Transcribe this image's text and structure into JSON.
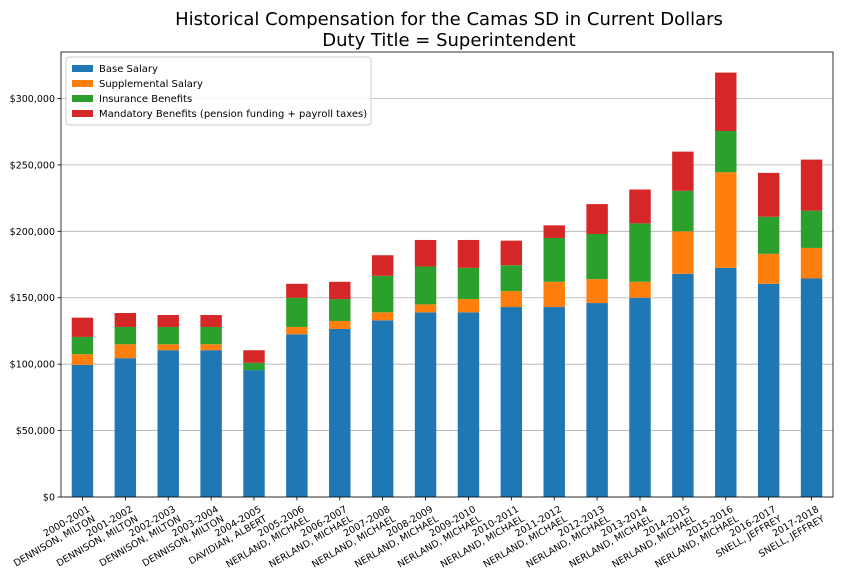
{
  "chart_data": {
    "type": "bar",
    "stacked": true,
    "title": "Historical Compensation for the Camas SD in Current Dollars",
    "subtitle": "Duty Title = Superintendent",
    "xlabel": "",
    "ylabel": "",
    "ylim": [
      0,
      335000
    ],
    "yticks": [
      0,
      50000,
      100000,
      150000,
      200000,
      250000,
      300000
    ],
    "ytick_labels": [
      "$0",
      "$50,000",
      "$100,000",
      "$150,000",
      "$200,000",
      "$250,000",
      "$300,000"
    ],
    "grid": "horizontal",
    "legend_position": "top-left",
    "categories": [
      [
        "2000-2001",
        "DENNISON, MILTON"
      ],
      [
        "2001-2002",
        "DENNISON, MILTON"
      ],
      [
        "2002-2003",
        "DENNISON, MILTON"
      ],
      [
        "2003-2004",
        "DENNISON, MILTON"
      ],
      [
        "2004-2005",
        "DAVIDIAN, ALBERT"
      ],
      [
        "2005-2006",
        "NERLAND, MICHAEL"
      ],
      [
        "2006-2007",
        "NERLAND, MICHAEL"
      ],
      [
        "2007-2008",
        "NERLAND, MICHAEL"
      ],
      [
        "2008-2009",
        "NERLAND, MICHAEL"
      ],
      [
        "2009-2010",
        "NERLAND, MICHAEL"
      ],
      [
        "2010-2011",
        "NERLAND, MICHAEL"
      ],
      [
        "2011-2012",
        "NERLAND, MICHAEL"
      ],
      [
        "2012-2013",
        "NERLAND, MICHAEL"
      ],
      [
        "2013-2014",
        "NERLAND, MICHAEL"
      ],
      [
        "2014-2015",
        "NERLAND, MICHAEL"
      ],
      [
        "2015-2016",
        "NERLAND, MICHAEL"
      ],
      [
        "2016-2017",
        "SNELL, JEFFREY"
      ],
      [
        "2017-2018",
        "SNELL, JEFFREY"
      ]
    ],
    "series": [
      {
        "name": "Base Salary",
        "color": "#1f77b4",
        "values": [
          99500,
          104500,
          110500,
          110500,
          95500,
          122500,
          126500,
          133000,
          139000,
          139000,
          143000,
          143000,
          146000,
          150000,
          168000,
          172500,
          160500,
          164500
        ]
      },
      {
        "name": "Supplemental Salary",
        "color": "#ff7f0e",
        "values": [
          8000,
          10500,
          4500,
          4500,
          0,
          5500,
          6000,
          6000,
          6000,
          10000,
          12000,
          19000,
          18000,
          12000,
          32000,
          72000,
          22500,
          23000
        ]
      },
      {
        "name": "Insurance Benefits",
        "color": "#2ca02c",
        "values": [
          13000,
          13000,
          13000,
          13000,
          5500,
          22000,
          16500,
          27500,
          28500,
          23500,
          19500,
          33000,
          34000,
          44000,
          30500,
          31000,
          28000,
          28000
        ]
      },
      {
        "name": "Mandatory Benefits (pension funding + payroll taxes)",
        "color": "#d62728",
        "values": [
          14500,
          10500,
          9000,
          9000,
          9500,
          10500,
          13000,
          15500,
          20000,
          21000,
          18500,
          9500,
          22500,
          25500,
          29500,
          44000,
          33000,
          38500
        ]
      }
    ]
  }
}
